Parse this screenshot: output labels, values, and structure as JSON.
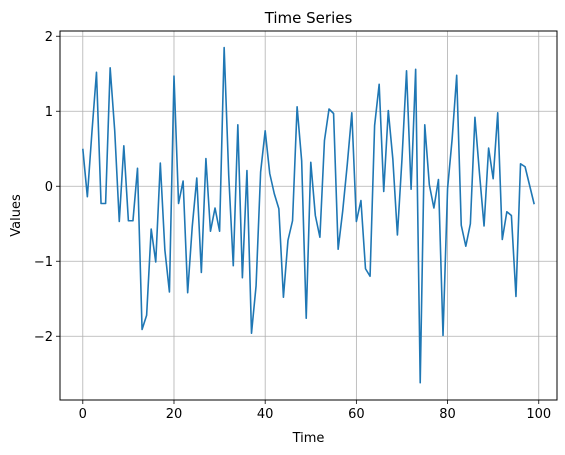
{
  "chart_data": {
    "type": "line",
    "title": "Time Series",
    "xlabel": "Time",
    "ylabel": "Values",
    "xlim": [
      -5,
      104
    ],
    "ylim": [
      -2.85,
      2.07
    ],
    "grid": true,
    "x_ticks": [
      0,
      20,
      40,
      60,
      80,
      100
    ],
    "y_ticks": [
      -2,
      -1,
      0,
      1,
      2
    ],
    "x_tick_labels": [
      "0",
      "20",
      "40",
      "60",
      "80",
      "100"
    ],
    "y_tick_labels": [
      "−2",
      "−1",
      "0",
      "1",
      "2"
    ],
    "series": [
      {
        "color": "#1f77b4",
        "x": [
          0,
          1,
          2,
          3,
          4,
          5,
          6,
          7,
          8,
          9,
          10,
          11,
          12,
          13,
          14,
          15,
          16,
          17,
          18,
          19,
          20,
          21,
          22,
          23,
          24,
          25,
          26,
          27,
          28,
          29,
          30,
          31,
          32,
          33,
          34,
          35,
          36,
          37,
          38,
          39,
          40,
          41,
          42,
          43,
          44,
          45,
          46,
          47,
          48,
          49,
          50,
          51,
          52,
          53,
          54,
          55,
          56,
          57,
          58,
          59,
          60,
          61,
          62,
          63,
          64,
          65,
          66,
          67,
          68,
          69,
          70,
          71,
          72,
          73,
          74,
          75,
          76,
          77,
          78,
          79,
          80,
          81,
          82,
          83,
          84,
          85,
          86,
          87,
          88,
          89,
          90,
          91,
          92,
          93,
          94,
          95,
          96,
          97,
          98,
          99
        ],
        "values": [
          0.5,
          -0.14,
          0.72,
          1.52,
          -0.23,
          -0.23,
          1.58,
          0.74,
          -0.47,
          0.54,
          -0.46,
          -0.46,
          0.24,
          -1.91,
          -1.72,
          -0.57,
          -1.01,
          0.31,
          -0.85,
          -1.41,
          1.47,
          -0.23,
          0.07,
          -1.42,
          -0.54,
          0.11,
          -1.15,
          0.37,
          -0.6,
          -0.29,
          -0.6,
          1.85,
          0.15,
          -1.06,
          0.82,
          -1.22,
          0.21,
          -1.96,
          -1.33,
          0.19,
          0.74,
          0.17,
          -0.1,
          -0.3,
          -1.48,
          -0.72,
          -0.46,
          1.06,
          0.34,
          -1.76,
          0.32,
          -0.39,
          -0.68,
          0.61,
          1.03,
          0.97,
          -0.84,
          -0.33,
          0.29,
          0.98,
          -0.47,
          -0.19,
          -1.1,
          -1.2,
          0.81,
          1.36,
          -0.07,
          1.01,
          0.36,
          -0.65,
          0.36,
          1.54,
          -0.04,
          1.56,
          -2.62,
          0.82,
          0.02,
          -0.29,
          0.09,
          -1.99,
          -0.03,
          0.63,
          1.48,
          -0.52,
          -0.8,
          -0.5,
          0.92,
          0.17,
          -0.53,
          0.51,
          0.1,
          0.98,
          -0.71,
          -0.34,
          -0.39,
          -1.47,
          0.3,
          0.26,
          0.01,
          -0.24
        ]
      }
    ]
  }
}
